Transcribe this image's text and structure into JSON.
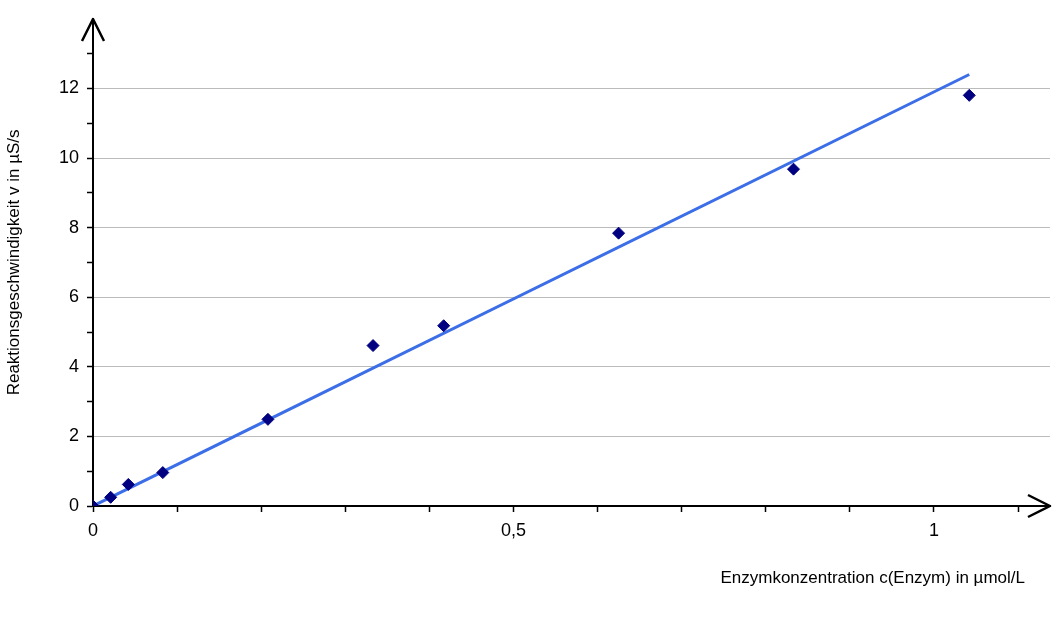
{
  "chart_data": {
    "type": "scatter",
    "xlabel": "Enzymkonzentration c(Enzym) in µmol/L",
    "ylabel": "Reaktionsgeschwindigkeit v in µS/s",
    "series": [
      {
        "color": "#000080",
        "x": [
          0,
          0.021,
          0.042,
          0.083,
          0.208,
          0.333,
          0.417,
          0.625,
          0.833,
          1.042
        ],
        "values": [
          0,
          0.25,
          0.62,
          0.96,
          2.49,
          4.61,
          5.18,
          7.84,
          9.68,
          11.8
        ],
        "marker": "diamond"
      },
      {
        "type": "line",
        "color": "#3c6ee8",
        "x": [
          0,
          1.042
        ],
        "values": [
          0,
          12.4
        ],
        "marker": "none"
      }
    ],
    "xlim": [
      0,
      1.138
    ],
    "ylim": [
      0,
      14
    ],
    "xticks": [
      0,
      {
        "value": 0.1,
        "label": null
      },
      {
        "value": 0.2,
        "label": null
      },
      {
        "value": 0.3,
        "label": null
      },
      {
        "value": 0.4,
        "label": null
      },
      {
        "value": 0.5,
        "label": "0,5"
      },
      {
        "value": 0.6,
        "label": null
      },
      {
        "value": 0.7,
        "label": null
      },
      {
        "value": 0.8,
        "label": null
      },
      {
        "value": 0.9,
        "label": null
      },
      1,
      {
        "value": 1.1,
        "label": null
      }
    ],
    "yticks": [
      0,
      {
        "value": 1,
        "label": null
      },
      2,
      {
        "value": 3,
        "label": null
      },
      4,
      {
        "value": 5,
        "label": null
      },
      6,
      {
        "value": 7,
        "label": null
      },
      8,
      {
        "value": 9,
        "label": null
      },
      10,
      {
        "value": 11,
        "label": null
      },
      12,
      {
        "value": 13,
        "label": null
      }
    ],
    "grid": "y",
    "legend": false
  }
}
